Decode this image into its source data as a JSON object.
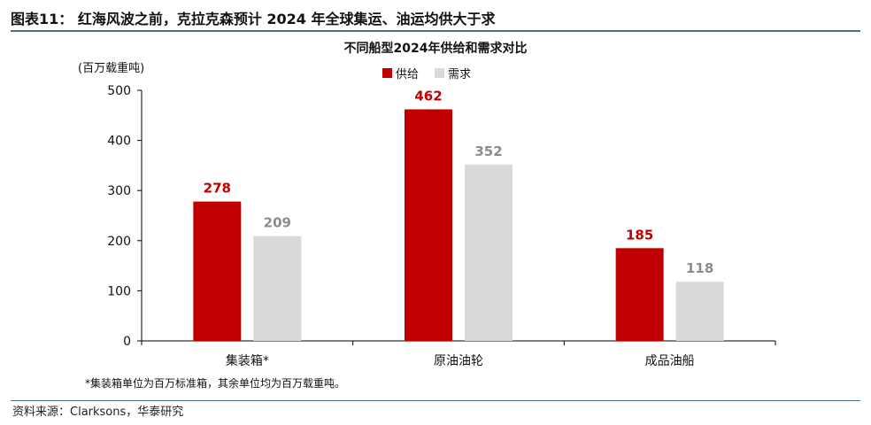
{
  "figure": {
    "title": "图表11： 红海风波之前，克拉克森预计 2024 年全球集运、油运均供大于求",
    "unit": "(百万载重吨)",
    "footnote": "*集装箱单位为百万标准箱，其余单位均为百万载重吨。",
    "source": "资料来源：Clarksons，华泰研究"
  },
  "colors": {
    "supply": "#c00000",
    "demand": "#d9d9d9",
    "rule": "#4a6d8c"
  },
  "chart_data": {
    "type": "bar",
    "title": "不同船型2024年供给和需求对比",
    "categories": [
      "集装箱*",
      "原油油轮",
      "成品油船"
    ],
    "series": [
      {
        "name": "供给",
        "values": [
          278,
          462,
          185
        ]
      },
      {
        "name": "需求",
        "values": [
          209,
          352,
          118
        ]
      }
    ],
    "ylabel": "(百万载重吨)",
    "ylim": [
      0,
      500
    ],
    "yticks": [
      0,
      100,
      200,
      300,
      400,
      500
    ],
    "grid": false,
    "legend": "top-center",
    "data_labels": true
  }
}
